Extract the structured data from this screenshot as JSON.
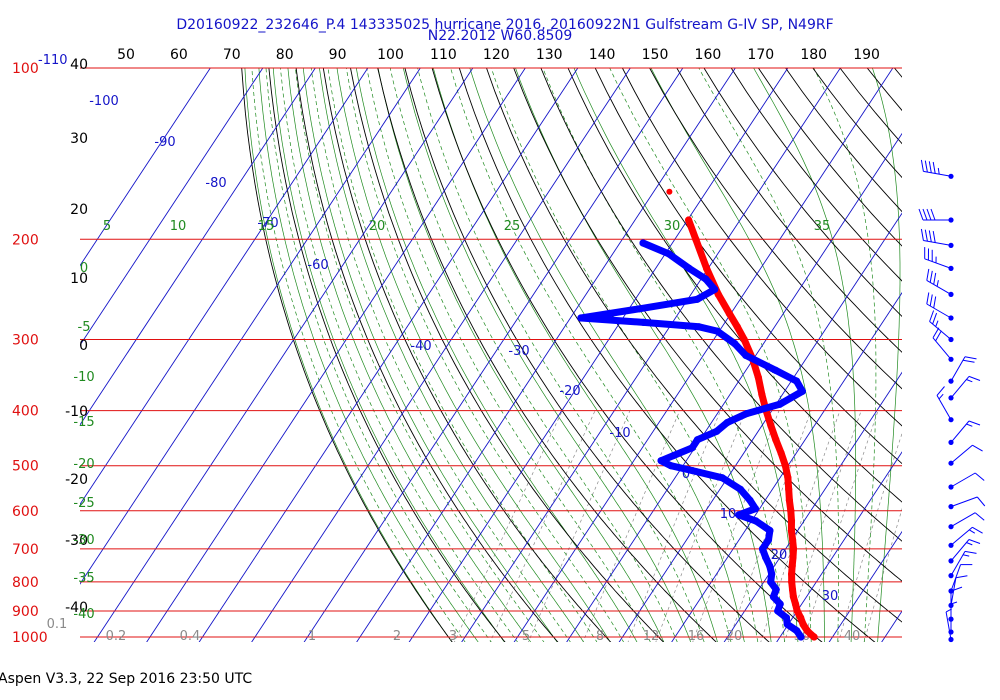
{
  "header": {
    "title_line1": "D20160922_232646_P.4 143335025 hurricane 2016, 20160922N1 Gulfstream G-IV SP, N49RF",
    "title_line2": "N22.2012 W60.8509"
  },
  "footer": {
    "version_text": "Aspen V3.3, 22 Sep 2016  23:50 UTC"
  },
  "chart_data": {
    "type": "skew-t",
    "colors": {
      "pressure_lines": "#e01010",
      "isotherms": "#1414c8",
      "dry_adiabats": "#000000",
      "moist_adiabats": "#1f8a1f",
      "mixing_ratio": "#8a8a8a",
      "temperature": "#ff0000",
      "dewpoint": "#0000ff",
      "wind_barbs": "#0000ff"
    },
    "pressure_labels": [
      "100",
      "200",
      "300",
      "400",
      "500",
      "600",
      "700",
      "800",
      "900",
      "1000"
    ],
    "upper_left_label": "-110",
    "left_temp_labels": [
      "40",
      "30",
      "20",
      "10",
      "0",
      "-10",
      "-20",
      "-30",
      "-40"
    ],
    "top_scale_labels": [
      "50",
      "60",
      "70",
      "80",
      "90",
      "100",
      "110",
      "120",
      "130",
      "140",
      "150",
      "160",
      "170",
      "180",
      "190"
    ],
    "isotherm_labels": [
      "-100",
      "-90",
      "-80",
      "-70",
      "-60",
      "-40",
      "-30",
      "-20",
      "-10",
      "0",
      "10",
      "20",
      "30"
    ],
    "theta_e_labels": [
      "5",
      "10",
      "15",
      "20",
      "25",
      "30",
      "35"
    ],
    "moist_left_labels": [
      "0",
      "-5",
      "-10",
      "-15",
      "-20",
      "-25",
      "-30",
      "-35",
      "-40"
    ],
    "mixing_ratio_labels": [
      "0.1",
      "0.2",
      "0.4",
      "1",
      "2",
      "3",
      "5",
      "8",
      "12",
      "16",
      "20",
      "30",
      "40"
    ],
    "temperature_profile": [
      {
        "p": 1000,
        "t": 26.5
      },
      {
        "p": 990,
        "t": 25.6
      },
      {
        "p": 975,
        "t": 24.4
      },
      {
        "p": 950,
        "t": 22.8
      },
      {
        "p": 925,
        "t": 21.5
      },
      {
        "p": 900,
        "t": 20.0
      },
      {
        "p": 875,
        "t": 18.8
      },
      {
        "p": 850,
        "t": 17.5
      },
      {
        "p": 825,
        "t": 16.4
      },
      {
        "p": 800,
        "t": 15.3
      },
      {
        "p": 775,
        "t": 14.3
      },
      {
        "p": 750,
        "t": 13.4
      },
      {
        "p": 725,
        "t": 12.5
      },
      {
        "p": 700,
        "t": 11.5
      },
      {
        "p": 675,
        "t": 10.2
      },
      {
        "p": 650,
        "t": 8.8
      },
      {
        "p": 625,
        "t": 7.6
      },
      {
        "p": 600,
        "t": 6.2
      },
      {
        "p": 575,
        "t": 4.6
      },
      {
        "p": 550,
        "t": 3.1
      },
      {
        "p": 525,
        "t": 1.5
      },
      {
        "p": 500,
        "t": -0.5
      },
      {
        "p": 475,
        "t": -2.9
      },
      {
        "p": 450,
        "t": -5.6
      },
      {
        "p": 425,
        "t": -8.3
      },
      {
        "p": 400,
        "t": -11.1
      },
      {
        "p": 375,
        "t": -13.9
      },
      {
        "p": 350,
        "t": -16.7
      },
      {
        "p": 325,
        "t": -20.1
      },
      {
        "p": 300,
        "t": -24.2
      },
      {
        "p": 285,
        "t": -27.1
      },
      {
        "p": 270,
        "t": -30.3
      },
      {
        "p": 250,
        "t": -34.8
      },
      {
        "p": 225,
        "t": -40.3
      },
      {
        "p": 200,
        "t": -46.0
      },
      {
        "p": 185,
        "t": -49.8
      }
    ],
    "temperature_outlier": {
      "p": 165,
      "t": -57.0
    },
    "dewpoint_profile": [
      {
        "p": 1000,
        "t": 24.0
      },
      {
        "p": 975,
        "t": 22.4
      },
      {
        "p": 950,
        "t": 19.8
      },
      {
        "p": 925,
        "t": 18.8
      },
      {
        "p": 900,
        "t": 16.3
      },
      {
        "p": 875,
        "t": 15.9
      },
      {
        "p": 850,
        "t": 13.7
      },
      {
        "p": 825,
        "t": 13.3
      },
      {
        "p": 800,
        "t": 11.3
      },
      {
        "p": 775,
        "t": 10.5
      },
      {
        "p": 750,
        "t": 9.1
      },
      {
        "p": 725,
        "t": 7.3
      },
      {
        "p": 700,
        "t": 5.6
      },
      {
        "p": 675,
        "t": 5.6
      },
      {
        "p": 650,
        "t": 4.7
      },
      {
        "p": 625,
        "t": 0.8
      },
      {
        "p": 610,
        "t": -3.2
      },
      {
        "p": 595,
        "t": -0.8
      },
      {
        "p": 575,
        "t": -2.9
      },
      {
        "p": 550,
        "t": -6.1
      },
      {
        "p": 525,
        "t": -11.0
      },
      {
        "p": 510,
        "t": -17.6
      },
      {
        "p": 500,
        "t": -22.3
      },
      {
        "p": 490,
        "t": -24.8
      },
      {
        "p": 480,
        "t": -23.1
      },
      {
        "p": 465,
        "t": -20.5
      },
      {
        "p": 450,
        "t": -20.5
      },
      {
        "p": 435,
        "t": -17.9
      },
      {
        "p": 420,
        "t": -17.0
      },
      {
        "p": 405,
        "t": -14.4
      },
      {
        "p": 390,
        "t": -9.3
      },
      {
        "p": 370,
        "t": -6.6
      },
      {
        "p": 355,
        "t": -9.0
      },
      {
        "p": 340,
        "t": -14.3
      },
      {
        "p": 320,
        "t": -21.9
      },
      {
        "p": 305,
        "t": -25.5
      },
      {
        "p": 290,
        "t": -30.4
      },
      {
        "p": 285,
        "t": -34.4
      },
      {
        "p": 280,
        "t": -45.5
      },
      {
        "p": 275,
        "t": -58.0
      },
      {
        "p": 265,
        "t": -48.0
      },
      {
        "p": 255,
        "t": -38.2
      },
      {
        "p": 245,
        "t": -36.1
      },
      {
        "p": 235,
        "t": -39.1
      },
      {
        "p": 225,
        "t": -43.6
      },
      {
        "p": 212,
        "t": -49.4
      },
      {
        "p": 203,
        "t": -55.6
      }
    ],
    "wind_barbs": [
      {
        "p": 155,
        "speed": 45,
        "dir": 280
      },
      {
        "p": 185,
        "speed": 40,
        "dir": 270
      },
      {
        "p": 205,
        "speed": 40,
        "dir": 280
      },
      {
        "p": 225,
        "speed": 35,
        "dir": 290
      },
      {
        "p": 250,
        "speed": 35,
        "dir": 300
      },
      {
        "p": 275,
        "speed": 30,
        "dir": 300
      },
      {
        "p": 300,
        "speed": 25,
        "dir": 310
      },
      {
        "p": 325,
        "speed": 20,
        "dir": 320
      },
      {
        "p": 355,
        "speed": 20,
        "dir": 30
      },
      {
        "p": 380,
        "speed": 15,
        "dir": 40
      },
      {
        "p": 415,
        "speed": 15,
        "dir": 330
      },
      {
        "p": 455,
        "speed": 15,
        "dir": 40
      },
      {
        "p": 495,
        "speed": 10,
        "dir": 50
      },
      {
        "p": 545,
        "speed": 10,
        "dir": 60
      },
      {
        "p": 590,
        "speed": 10,
        "dir": 70
      },
      {
        "p": 640,
        "speed": 10,
        "dir": 60
      },
      {
        "p": 690,
        "speed": 15,
        "dir": 50
      },
      {
        "p": 735,
        "speed": 15,
        "dir": 40
      },
      {
        "p": 780,
        "speed": 15,
        "dir": 30
      },
      {
        "p": 830,
        "speed": 10,
        "dir": 20
      },
      {
        "p": 880,
        "speed": 10,
        "dir": 10
      },
      {
        "p": 930,
        "speed": 10,
        "dir": 0
      },
      {
        "p": 980,
        "speed": 5,
        "dir": 0
      },
      {
        "p": 1010,
        "speed": 5,
        "dir": 350
      }
    ]
  }
}
